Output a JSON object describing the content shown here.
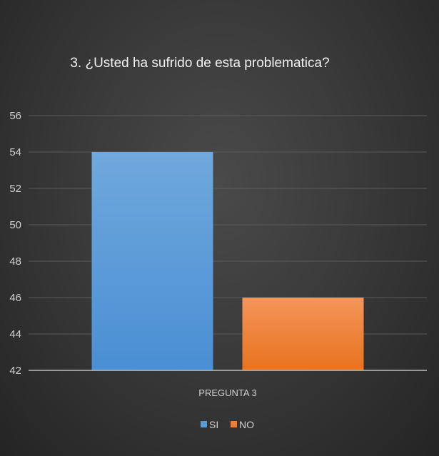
{
  "chart_data": {
    "type": "bar",
    "title": "3. ¿Usted ha sufrido de esta problematica?",
    "categories": [
      "PREGUNTA 3"
    ],
    "series": [
      {
        "name": "SI",
        "values": [
          54
        ],
        "color": "#5b9bd5"
      },
      {
        "name": "NO",
        "values": [
          46
        ],
        "color": "#ed7d31"
      }
    ],
    "xlabel": "",
    "ylabel": "",
    "ylim": [
      42,
      56
    ],
    "yticks": [
      42,
      44,
      46,
      48,
      50,
      52,
      54,
      56
    ],
    "grid": true,
    "legend_position": "bottom"
  }
}
